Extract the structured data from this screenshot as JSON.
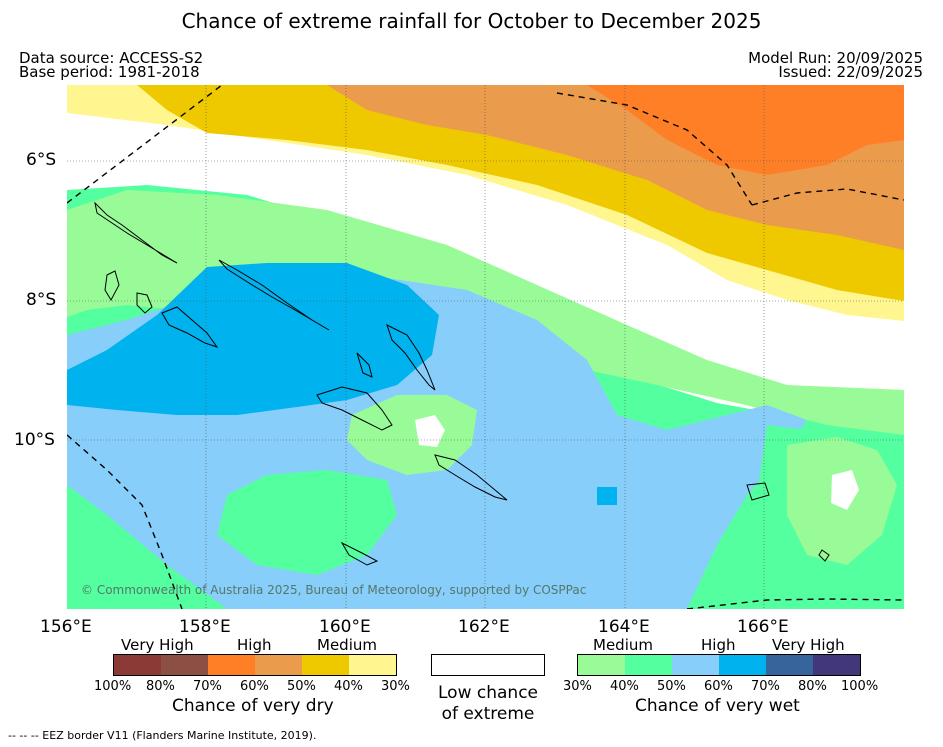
{
  "title": "Chance of extreme rainfall for October to December 2025",
  "header": {
    "data_source": "Data source: ACCESS-S2",
    "base_period": "Base period: 1981-2018",
    "model_run": "Model Run: 20/09/2025",
    "issued": "Issued: 22/09/2025"
  },
  "map": {
    "lat_labels": [
      "6°S",
      "8°S",
      "10°S"
    ],
    "lon_labels": [
      "156°E",
      "158°E",
      "160°E",
      "162°E",
      "164°E",
      "166°E"
    ],
    "copyright": "© Commonwealth of Australia 2025, Bureau of Meteorology, supported by COSPPac"
  },
  "legend": {
    "dry": {
      "categories": [
        "Very High",
        "High",
        "Medium"
      ],
      "ticks": [
        "100%",
        "80%",
        "70%",
        "60%",
        "50%",
        "40%",
        "30%"
      ],
      "colors": [
        "#8b3a36",
        "#8c4f44",
        "#ff7f27",
        "#eb9b4c",
        "#eec900",
        "#fff68f"
      ],
      "caption": "Chance of very dry"
    },
    "neutral": {
      "line1": "Low chance",
      "line2": "of extreme",
      "color": "#ffffff"
    },
    "wet": {
      "categories": [
        "Medium",
        "High",
        "Very High"
      ],
      "ticks": [
        "30%",
        "40%",
        "50%",
        "60%",
        "70%",
        "80%",
        "100%"
      ],
      "colors": [
        "#98fb98",
        "#54ff9f",
        "#87cefa",
        "#00b2ee",
        "#36649b",
        "#41377a"
      ],
      "caption": "Chance of very wet"
    }
  },
  "footnote": "--  --  -- EEZ border V11 (Flanders Marine Institute, 2019)."
}
